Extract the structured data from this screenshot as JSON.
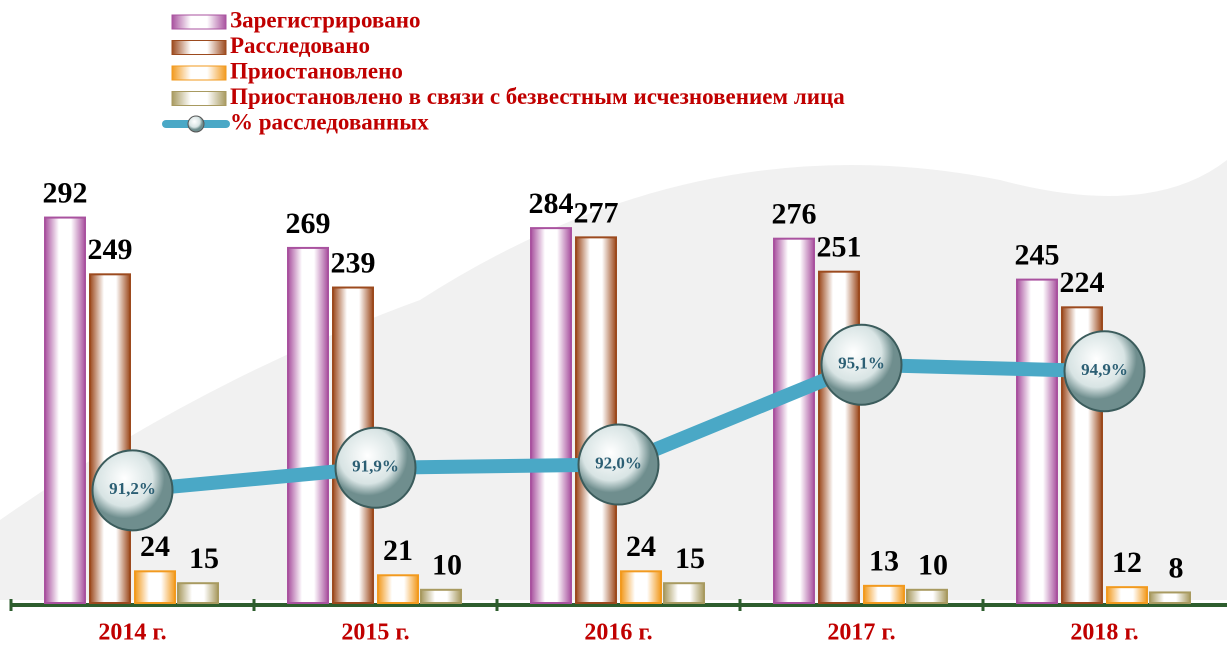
{
  "chart_data": {
    "type": "bar",
    "categories": [
      "2014 г.",
      "2015 г.",
      "2016 г.",
      "2017 г.",
      "2018 г."
    ],
    "series": [
      {
        "name": "Зарегистрировано",
        "color": "#a9529f",
        "values": [
          292,
          269,
          284,
          276,
          245
        ]
      },
      {
        "name": "Расследовано",
        "color": "#9c4a1e",
        "values": [
          249,
          239,
          277,
          251,
          224
        ]
      },
      {
        "name": "Приостановлено",
        "color": "#f29a1e",
        "values": [
          24,
          21,
          24,
          13,
          12
        ]
      },
      {
        "name": "Приостановлено в связи с безвестным исчезновением лица",
        "color": "#a89a60",
        "values": [
          15,
          10,
          15,
          10,
          8
        ]
      },
      {
        "name": "% расследованных",
        "color": "#4aa8c6",
        "type": "line",
        "axis": "y2",
        "values": [
          91.2,
          91.9,
          92.0,
          95.1,
          94.9
        ],
        "value_labels": [
          "91,2%",
          "91,9%",
          "92,0%",
          "95,1%",
          "94,9%"
        ]
      }
    ],
    "ylim": [
      0,
      300
    ],
    "y2lim": [
      87.7,
      100
    ]
  }
}
